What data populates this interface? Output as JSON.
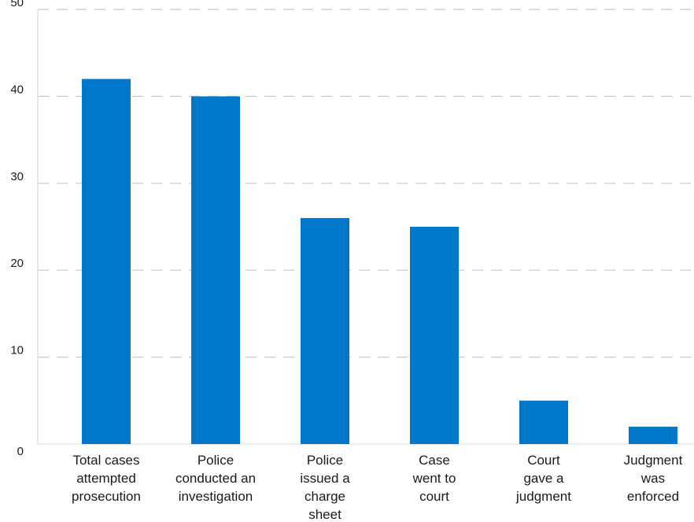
{
  "chart_data": {
    "type": "bar",
    "categories": [
      "Total cases attempted prosecution",
      "Police conducted an investigation",
      "Police issued a charge sheet",
      "Case went to court",
      "Court gave a judgment",
      "Judgment was enforced"
    ],
    "category_lines": [
      [
        "Total cases",
        "attempted",
        "prosecution"
      ],
      [
        "Police",
        "conducted an",
        "investigation"
      ],
      [
        "Police",
        "issued a",
        "charge",
        "sheet"
      ],
      [
        "Case",
        "went to",
        "court"
      ],
      [
        "Court",
        "gave a",
        "judgment"
      ],
      [
        "Judgment",
        "was",
        "enforced"
      ]
    ],
    "values": [
      42,
      40,
      26,
      25,
      5,
      2
    ],
    "yticks": [
      "0",
      "10",
      "20",
      "30",
      "40",
      "50"
    ],
    "ylim": [
      0,
      50
    ],
    "grid": true,
    "grid_style": "dashed",
    "legend": "none",
    "colors": {
      "bar": "#0077c8",
      "grid": "#c8c8c8",
      "axis": "#d9d9d9",
      "text": "#1a1a1a"
    }
  }
}
